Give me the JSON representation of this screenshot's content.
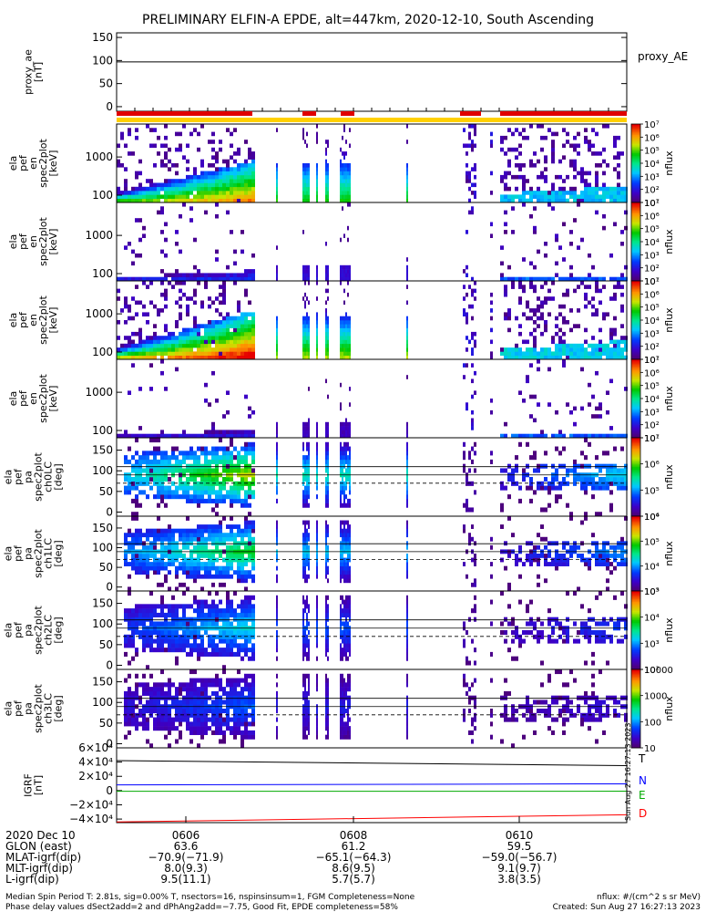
{
  "title": "PRELIMINARY ELFIN-A EPDE, alt=447km, 2020-12-10, South Ascending",
  "chart_data": [
    {
      "type": "line",
      "ylabel": [
        "proxy_ae",
        "[nT]"
      ],
      "yticks": [
        0,
        50,
        100,
        150
      ],
      "ylim": [
        -10,
        160
      ],
      "series": [
        {
          "name": "proxy_AE",
          "x": [
            0,
            1
          ],
          "values": [
            97,
            97
          ]
        }
      ],
      "legend": "right"
    },
    {
      "type": "heatmap",
      "ylabel": [
        "ela",
        "pef",
        "en",
        "spec2plot",
        "[keV]"
      ],
      "yticks": [
        "100",
        "1000"
      ],
      "colorbar_ticks": [
        "10¹",
        "10²",
        "10³",
        "10⁴",
        "10⁵",
        "10⁶",
        "10⁷"
      ],
      "colorbar_label": "nflux"
    },
    {
      "type": "heatmap",
      "ylabel": [
        "ela",
        "pef",
        "en",
        "spec2plot",
        "[keV]"
      ],
      "yticks": [
        "100",
        "1000"
      ],
      "colorbar_ticks": [
        "10¹",
        "10²",
        "10³",
        "10⁴",
        "10⁵",
        "10⁶",
        "10⁷"
      ],
      "colorbar_label": "nflux"
    },
    {
      "type": "heatmap",
      "ylabel": [
        "ela",
        "pef",
        "en",
        "spec2plot",
        "[keV]"
      ],
      "yticks": [
        "100",
        "1000"
      ],
      "colorbar_ticks": [
        "10¹",
        "10²",
        "10³",
        "10⁴",
        "10⁵",
        "10⁶",
        "10⁷"
      ],
      "colorbar_label": "nflux"
    },
    {
      "type": "heatmap",
      "ylabel": [
        "ela",
        "pef",
        "en",
        "spec2plot",
        "[keV]"
      ],
      "yticks": [
        "100",
        "1000"
      ],
      "colorbar_ticks": [
        "10¹",
        "10²",
        "10³",
        "10⁴",
        "10⁵",
        "10⁶",
        "10⁷"
      ],
      "colorbar_label": "nflux"
    },
    {
      "type": "heatmap",
      "ylabel": [
        "ela",
        "pef",
        "pa",
        "spec2plot",
        "ch0LC",
        "[deg]"
      ],
      "yticks": [
        "0",
        "50",
        "100",
        "150"
      ],
      "colorbar_ticks": [
        "10⁴",
        "10⁵",
        "10⁶",
        "10⁷"
      ],
      "colorbar_label": "nflux"
    },
    {
      "type": "heatmap",
      "ylabel": [
        "ela",
        "pef",
        "pa",
        "spec2plot",
        "ch1LC",
        "[deg]"
      ],
      "yticks": [
        "0",
        "50",
        "100",
        "150"
      ],
      "colorbar_ticks": [
        "10³",
        "10⁴",
        "10⁵",
        "10⁶"
      ],
      "colorbar_label": "nflux"
    },
    {
      "type": "heatmap",
      "ylabel": [
        "ela",
        "pef",
        "pa",
        "spec2plot",
        "ch2LC",
        "[deg]"
      ],
      "yticks": [
        "0",
        "50",
        "100",
        "150"
      ],
      "colorbar_ticks": [
        "10²",
        "10³",
        "10⁴",
        "10⁵"
      ],
      "colorbar_label": "nflux"
    },
    {
      "type": "heatmap",
      "ylabel": [
        "ela",
        "pef",
        "pa",
        "spec2plot",
        "ch3LC",
        "[deg]"
      ],
      "yticks": [
        "0",
        "50",
        "100",
        "150"
      ],
      "colorbar_ticks": [
        "10",
        "100",
        "1000",
        "10000"
      ],
      "colorbar_label": "nflux"
    },
    {
      "type": "line",
      "ylabel": [
        "IGRF",
        "[nT]"
      ],
      "yticks": [
        "−4×10⁴",
        "−2×10⁴",
        "0",
        "2×10⁴",
        "4×10⁴",
        "6×10⁴"
      ],
      "ylim": [
        -45000,
        60000
      ],
      "series": [
        {
          "name": "T",
          "x": [
            0,
            1
          ],
          "values": [
            42000,
            35000
          ],
          "color": "#000000"
        },
        {
          "name": "N",
          "x": [
            0,
            1
          ],
          "values": [
            8000,
            9500
          ],
          "color": "#0000ff"
        },
        {
          "name": "E",
          "x": [
            0,
            1
          ],
          "values": [
            -1000,
            -900
          ],
          "color": "#00aa00"
        },
        {
          "name": "D",
          "x": [
            0,
            1
          ],
          "values": [
            -44000,
            -34000
          ],
          "color": "#ff0000"
        }
      ],
      "timestamp_vertical": "Sun Aug 27 16:27:13 2023"
    }
  ],
  "time_axis": {
    "date": "2020 Dec 10",
    "ticks": [
      "0606",
      "0608",
      "0610"
    ],
    "rows": [
      {
        "label": "GLON (east)",
        "values": [
          "63.6",
          "61.2",
          "59.5"
        ]
      },
      {
        "label": "MLAT-igrf(dip)",
        "values": [
          "−70.9(−71.9)",
          "−65.1(−64.3)",
          "−59.0(−56.7)"
        ]
      },
      {
        "label": "MLT-igrf(dip)",
        "values": [
          "8.0(9.3)",
          "8.6(9.5)",
          "9.1(9.7)"
        ]
      },
      {
        "label": "L-igrf(dip)",
        "values": [
          "9.5(11.1)",
          "5.7(5.7)",
          "3.8(3.5)"
        ]
      }
    ]
  },
  "footer": {
    "line1": "Median Spin Period T: 2.81s, sig=0.00% T, nsectors=16, nspinsinsum=1, FGM Completeness=None",
    "line2": "Phase delay values dSect2add=2 and dPhAng2add=−7.75, Good Fit, EPDE completeness=58%",
    "right1": "nflux: #/(cm^2 s sr MeV)",
    "right2": "Created: Sun Aug 27 16:27:13 2023"
  }
}
